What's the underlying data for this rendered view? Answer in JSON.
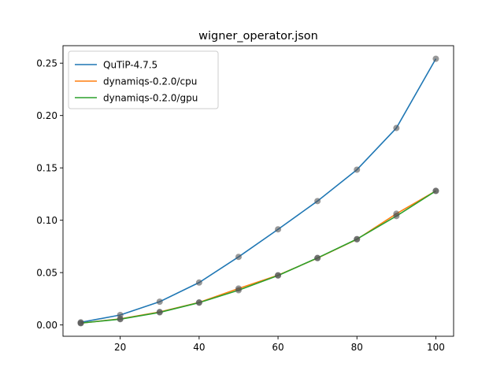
{
  "chart_data": {
    "type": "line",
    "title": "wigner_operator.json",
    "xlabel": "",
    "ylabel": "",
    "xlim": [
      5.5,
      104.5
    ],
    "ylim": [
      -0.0108,
      0.2667
    ],
    "xticks": [
      20,
      40,
      60,
      80,
      100
    ],
    "yticks": [
      0.0,
      0.05,
      0.1,
      0.15,
      0.2,
      0.25
    ],
    "ytick_labels": [
      "0.00",
      "0.05",
      "0.10",
      "0.15",
      "0.20",
      "0.25"
    ],
    "grid": false,
    "legend_position": "upper-left",
    "x": [
      10,
      20,
      30,
      40,
      50,
      60,
      70,
      80,
      90,
      100
    ],
    "series": [
      {
        "name": "QuTiP-4.7.5",
        "color": "#1f77b4",
        "values": [
          0.0025,
          0.0095,
          0.0222,
          0.0405,
          0.065,
          0.0913,
          0.1183,
          0.1483,
          0.1881,
          0.2542
        ]
      },
      {
        "name": "dynamiqs-0.2.0/cpu",
        "color": "#ff7f0e",
        "values": [
          0.0017,
          0.0058,
          0.0124,
          0.0215,
          0.0348,
          0.0475,
          0.0638,
          0.0818,
          0.1062,
          0.128
        ]
      },
      {
        "name": "dynamiqs-0.2.0/gpu",
        "color": "#2ca02c",
        "values": [
          0.0018,
          0.0055,
          0.012,
          0.0213,
          0.0332,
          0.0472,
          0.064,
          0.082,
          0.104,
          0.128
        ]
      }
    ],
    "marker_color": "#555555"
  }
}
